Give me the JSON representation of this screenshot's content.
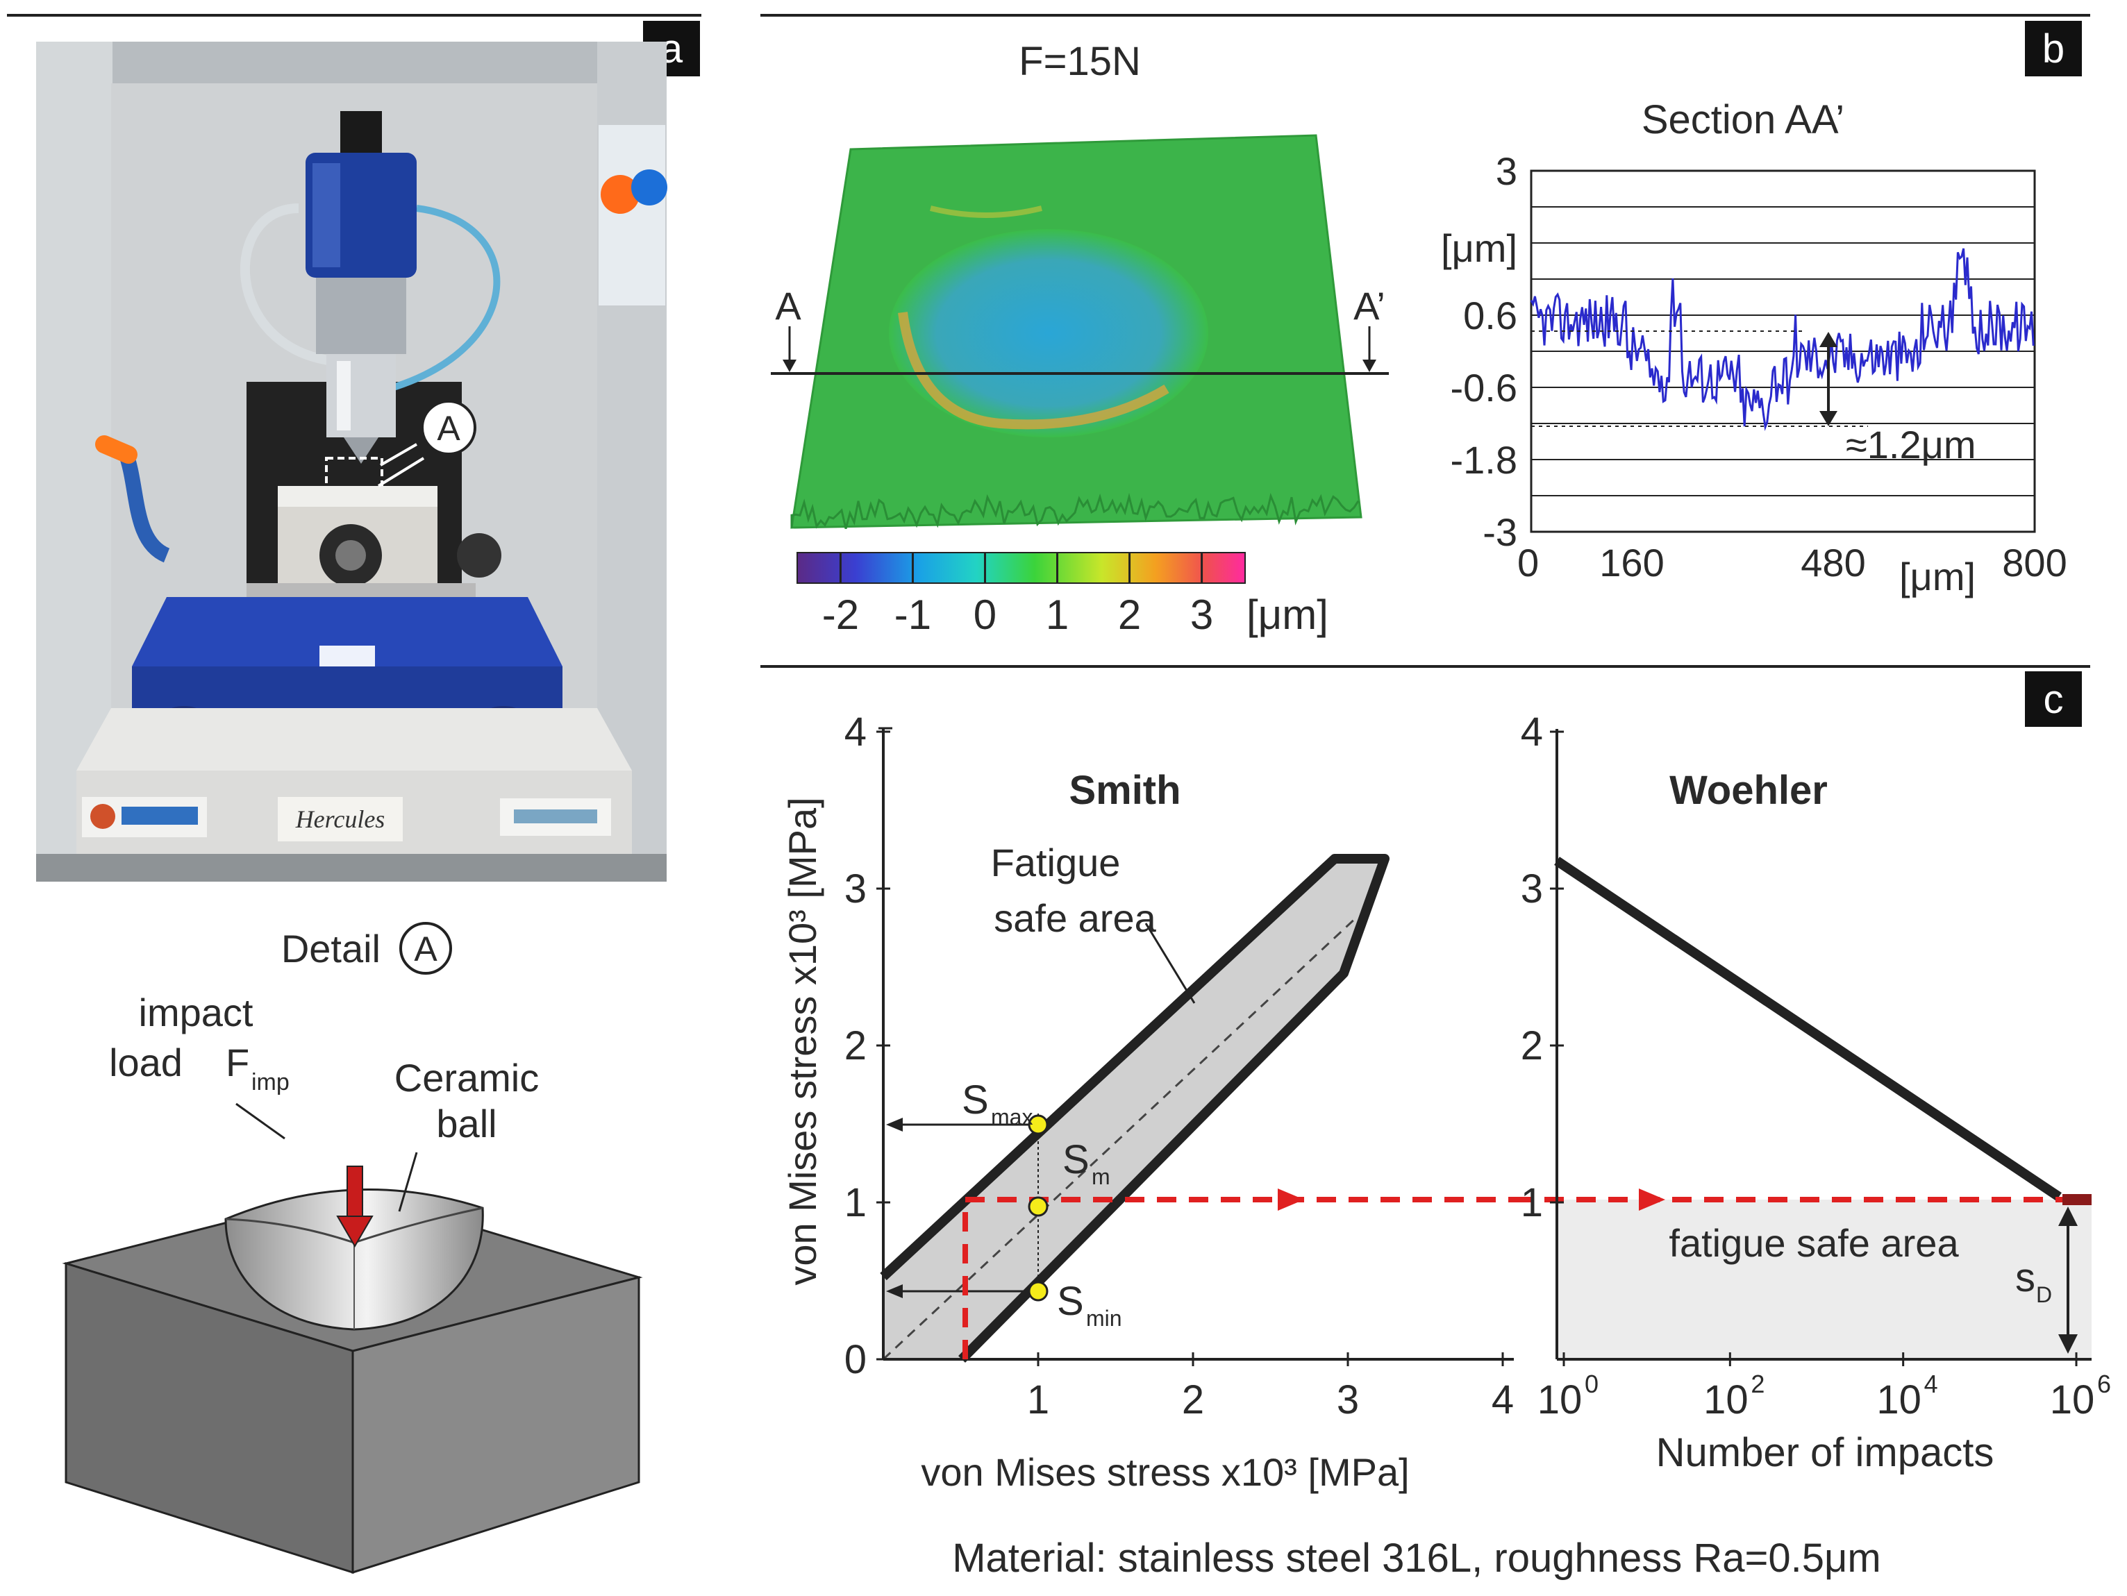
{
  "panels": {
    "a": {
      "letter": "a",
      "photo_labels": [
        "Hercules"
      ],
      "callout": "A",
      "detail_title": "Detail",
      "detail_marker": "A",
      "load_label_line1": "impact",
      "load_label_line2": "load",
      "force_symbol": "F",
      "force_sub": "imp",
      "ball_label_line1": "Ceramic",
      "ball_label_line2": "ball"
    },
    "b": {
      "letter": "b",
      "surface_title": "F=15N",
      "section_start": "A",
      "section_end": "A’",
      "colorbar_ticks": [
        "-2",
        "-1",
        "0",
        "1",
        "2",
        "3"
      ],
      "colorbar_unit": "[μm]",
      "colorbar_colors": [
        "#5b2a86",
        "#3a3fd1",
        "#1aa0e6",
        "#22d3c4",
        "#3bd33b",
        "#c8e62a",
        "#f4a020",
        "#f05050",
        "#ff2aa0"
      ],
      "profile_title": "Section AA’",
      "profile_yticks": [
        "3",
        "0.6",
        "-0.6",
        "-1.8",
        "-3"
      ],
      "profile_yunit": "[μm]",
      "profile_xticks": [
        "0",
        "160",
        "480",
        "800"
      ],
      "profile_xunit": "[μm]",
      "depth_label": "≈1.2μm",
      "profile_color": "#2a2acc"
    },
    "c": {
      "letter": "c",
      "smith_title": "Smith",
      "woehler_title": "Woehler",
      "safe_area_line1": "Fatigue",
      "safe_area_line2": "safe area",
      "smax_label": "S",
      "smax_sub": "max",
      "sm_label": "S",
      "sm_sub": "m",
      "smin_label": "S",
      "smin_sub": "min",
      "smith_yticks": [
        "0",
        "1",
        "2",
        "3",
        "4"
      ],
      "smith_xticks": [
        "1",
        "2",
        "3",
        "4"
      ],
      "smith_ylabel": "von Mises stress x10³ [MPa]",
      "smith_xlabel": "von Mises stress x10³ [MPa]",
      "woehler_yticks": [
        "1",
        "2",
        "3",
        "4"
      ],
      "woehler_xticks": [
        {
          "base": "10",
          "exp": "0"
        },
        {
          "base": "10",
          "exp": "2"
        },
        {
          "base": "10",
          "exp": "4"
        },
        {
          "base": "10",
          "exp": "6"
        }
      ],
      "woehler_xlabel": "Number of impacts",
      "woehler_safe_label": "fatigue safe area",
      "sd_label": "s",
      "sd_sub": "D",
      "material_note": "Material: stainless steel 316L, roughness Ra=0.5μm",
      "accent_red": "#e02020",
      "marker_yellow": "#f5ec1a"
    }
  }
}
